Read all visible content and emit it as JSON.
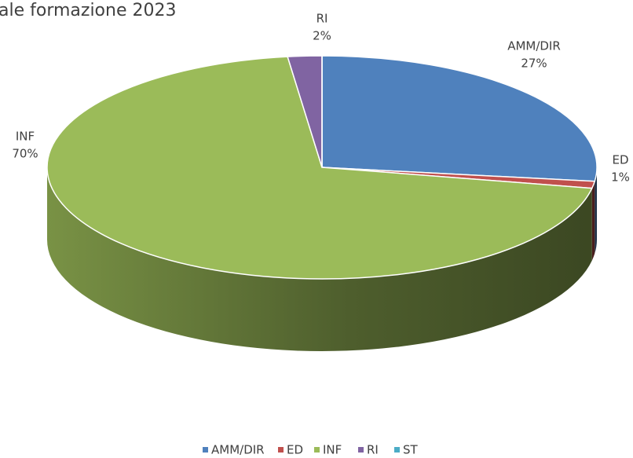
{
  "chart_data": {
    "type": "pie3d",
    "title": "ale formazione 2023",
    "categories": [
      "AMM/DIR",
      "ED",
      "INF",
      "RI",
      "ST"
    ],
    "values": [
      27,
      1,
      70,
      2,
      0
    ],
    "value_labels": [
      "27%",
      "1%",
      "70%",
      "2%",
      null
    ],
    "colors": [
      "#4f81bd",
      "#c0504d",
      "#9bbb59",
      "#8064a2",
      "#4bacc6"
    ],
    "legend": "bottom"
  }
}
